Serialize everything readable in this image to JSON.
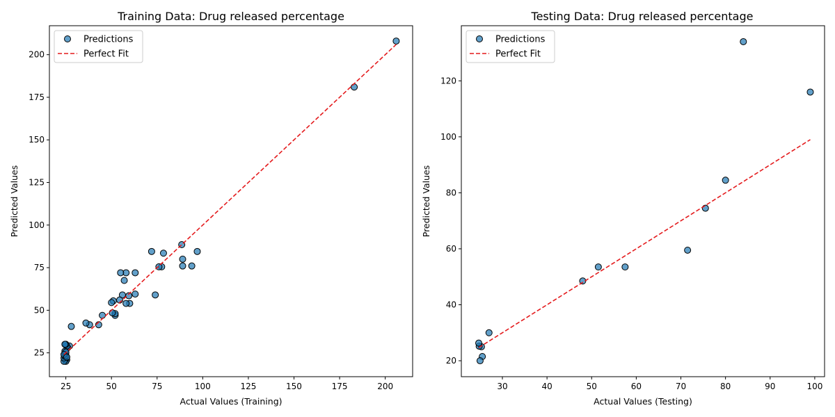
{
  "chart_data": [
    {
      "type": "scatter",
      "title": "Training Data: Drug released percentage",
      "xlabel": "Actual Values (Training)",
      "ylabel": "Predicted Values",
      "xlim": [
        16,
        215
      ],
      "ylim": [
        11,
        217
      ],
      "xticks": [
        25,
        50,
        75,
        100,
        125,
        150,
        175,
        200
      ],
      "yticks": [
        25,
        50,
        75,
        100,
        125,
        150,
        175,
        200
      ],
      "grid": false,
      "legend_position": "top-left",
      "series": [
        {
          "name": "Predictions",
          "kind": "scatter",
          "color": "#1f77b4",
          "points": [
            [
              206,
              208
            ],
            [
              183,
              181
            ],
            [
              97,
              84.5
            ],
            [
              94,
              76
            ],
            [
              89,
              76
            ],
            [
              89,
              80
            ],
            [
              88.5,
              88.5
            ],
            [
              78.5,
              83.5
            ],
            [
              77.5,
              75.5
            ],
            [
              76,
              75.5
            ],
            [
              74,
              59
            ],
            [
              72,
              84.5
            ],
            [
              63,
              72
            ],
            [
              63,
              59.5
            ],
            [
              60,
              54
            ],
            [
              59.5,
              58.5
            ],
            [
              58,
              72
            ],
            [
              58,
              54
            ],
            [
              57,
              67.5
            ],
            [
              56,
              59
            ],
            [
              55,
              72
            ],
            [
              54.5,
              56
            ],
            [
              52,
              47
            ],
            [
              52,
              48
            ],
            [
              51,
              55.5
            ],
            [
              50.5,
              48.5
            ],
            [
              50,
              54.5
            ],
            [
              45,
              47
            ],
            [
              43,
              41.5
            ],
            [
              38,
              41.5
            ],
            [
              36,
              42.5
            ],
            [
              28,
              40.5
            ],
            [
              27,
              29
            ],
            [
              26,
              28
            ],
            [
              25.5,
              29
            ],
            [
              25,
              30
            ],
            [
              24.5,
              30
            ],
            [
              25.5,
              21
            ],
            [
              25,
              20
            ],
            [
              24.5,
              21
            ],
            [
              24,
              20
            ],
            [
              24,
              22
            ],
            [
              24.5,
              23
            ],
            [
              25,
              23.5
            ],
            [
              24.5,
              24.5
            ],
            [
              25,
              25
            ],
            [
              24.5,
              26
            ],
            [
              25,
              25.5
            ],
            [
              24,
              24
            ],
            [
              25.5,
              22.5
            ]
          ]
        },
        {
          "name": "Perfect Fit",
          "kind": "line",
          "color": "#e41a1c",
          "points": [
            [
              24,
              24
            ],
            [
              206,
              206
            ]
          ]
        }
      ]
    },
    {
      "type": "scatter",
      "title": "Testing Data: Drug released percentage",
      "xlabel": "Actual Values (Testing)",
      "ylabel": "Predicted Values",
      "xlim": [
        20.8,
        102.2
      ],
      "ylim": [
        14.3,
        139.7
      ],
      "xticks": [
        30,
        40,
        50,
        60,
        70,
        80,
        90,
        100
      ],
      "yticks": [
        20,
        40,
        60,
        80,
        100,
        120
      ],
      "grid": false,
      "legend_position": "top-left",
      "series": [
        {
          "name": "Predictions",
          "kind": "scatter",
          "color": "#1f77b4",
          "points": [
            [
              99,
              116
            ],
            [
              84,
              134
            ],
            [
              80,
              84.5
            ],
            [
              75.5,
              74.5
            ],
            [
              71.5,
              59.5
            ],
            [
              57.5,
              53.5
            ],
            [
              51.5,
              53.5
            ],
            [
              48,
              48.5
            ],
            [
              27,
              30
            ],
            [
              25.5,
              21.5
            ],
            [
              25,
              20
            ],
            [
              25.3,
              25
            ],
            [
              24.8,
              25.2
            ],
            [
              24.7,
              26.3
            ]
          ]
        },
        {
          "name": "Perfect Fit",
          "kind": "line",
          "color": "#e41a1c",
          "points": [
            [
              24.7,
              24.7
            ],
            [
              99,
              99
            ]
          ]
        }
      ]
    }
  ]
}
